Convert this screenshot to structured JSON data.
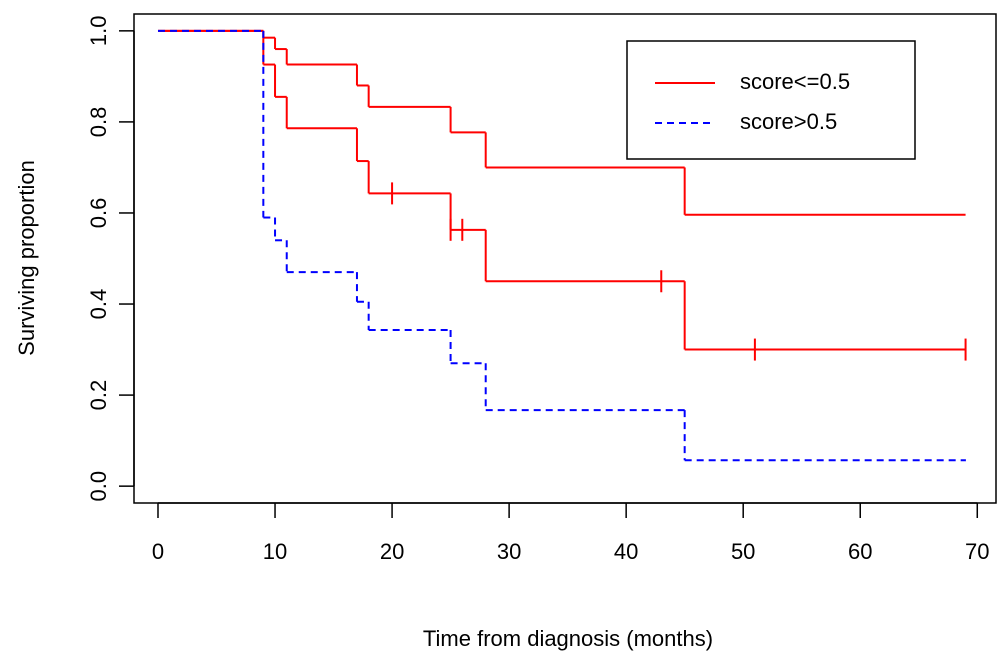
{
  "chart_data": {
    "type": "step",
    "xlabel": "Time from diagnosis (months)",
    "ylabel": "Surviving proportion",
    "xlim": [
      -2.05,
      71.6
    ],
    "ylim": [
      -0.037,
      1.037
    ],
    "xticks": [
      0,
      10,
      20,
      30,
      40,
      50,
      60,
      70
    ],
    "yticks": [
      {
        "value": 0,
        "label": "0.0"
      },
      0.2,
      0.4,
      0.6,
      0.8,
      {
        "value": 1,
        "label": "1.0"
      }
    ],
    "legend": "top-right",
    "series": [
      {
        "name": "score<=0.5",
        "color": "#ff0000",
        "linetype": "solid",
        "x": [
          0,
          9,
          10,
          11,
          17,
          18,
          25,
          28,
          45,
          69
        ],
        "values": [
          1,
          0.985,
          0.96,
          0.926,
          0.88,
          0.833,
          0.777,
          0.7,
          0.596,
          0.596
        ]
      },
      {
        "color": "#ff0000",
        "linetype": "solid",
        "x": [
          0,
          9,
          10,
          11,
          17,
          18,
          25,
          28,
          45,
          69
        ],
        "values": [
          1,
          0.926,
          0.855,
          0.786,
          0.714,
          0.643,
          0.563,
          0.45,
          0.3,
          0.3
        ],
        "censor_x": [
          20,
          25,
          26,
          43,
          51,
          69
        ],
        "censor_values": [
          0.643,
          0.563,
          0.563,
          0.45,
          0.3,
          0.3
        ]
      },
      {
        "name": "score>0.5",
        "color": "#0000ff",
        "linetype": "dashed",
        "x": [
          0,
          9,
          10,
          11,
          17,
          18,
          25,
          28,
          45,
          69
        ],
        "values": [
          1,
          0.59,
          0.54,
          0.47,
          0.405,
          0.343,
          0.27,
          0.167,
          0.057,
          0.057
        ]
      }
    ]
  }
}
